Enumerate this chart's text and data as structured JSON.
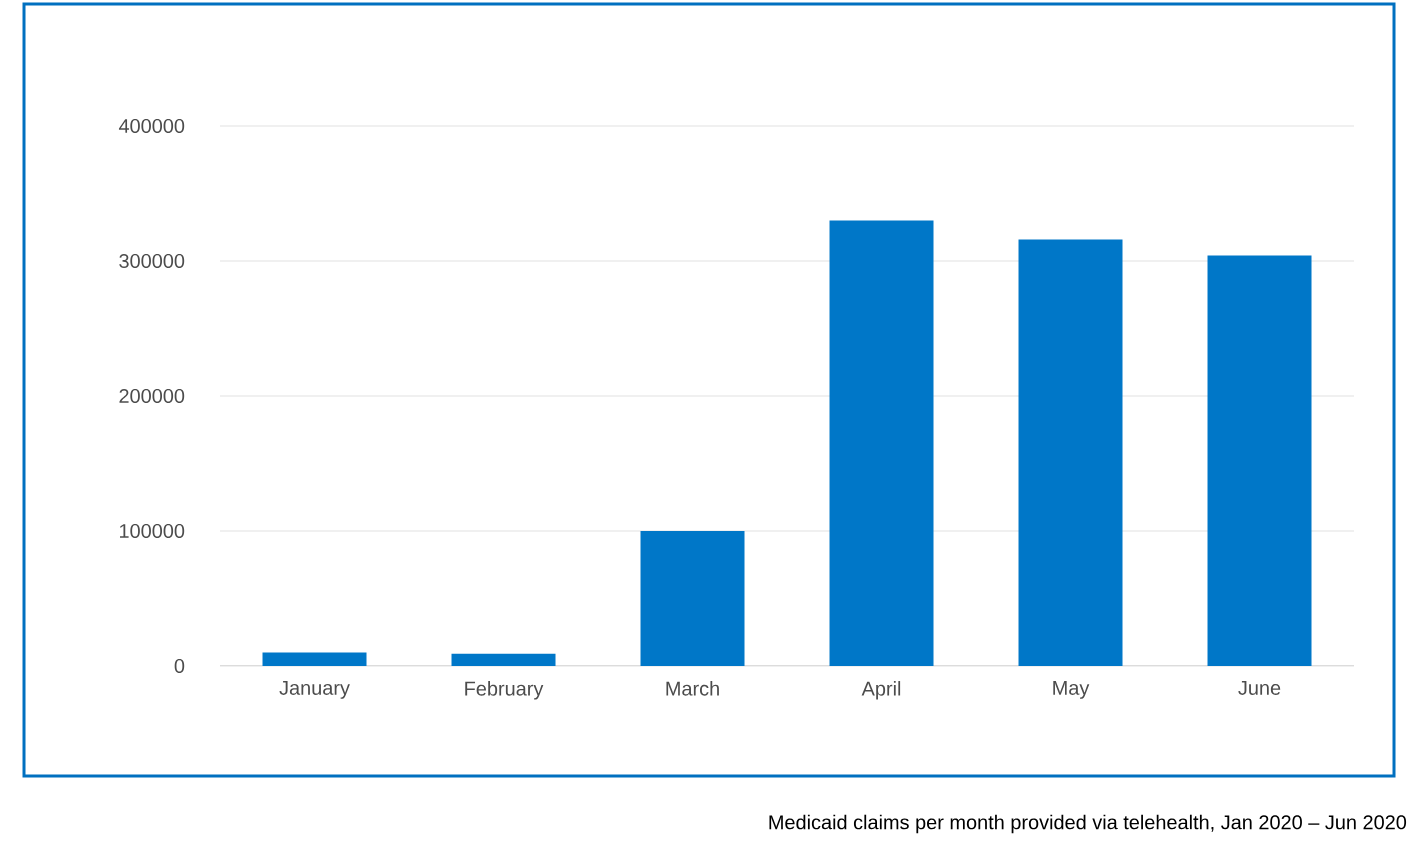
{
  "chart_data": {
    "type": "bar",
    "categories": [
      "January",
      "February",
      "March",
      "April",
      "May",
      "June"
    ],
    "values": [
      10000,
      9000,
      100000,
      330000,
      316000,
      304000
    ],
    "color": "#0077c8",
    "ylim": [
      0,
      400000
    ],
    "yticks": [
      0,
      100000,
      200000,
      300000,
      400000
    ],
    "grid": "y",
    "annotations": [
      "Medicaid claims per month provided via telehealth, Jan 2020 – Jun 2020"
    ]
  }
}
